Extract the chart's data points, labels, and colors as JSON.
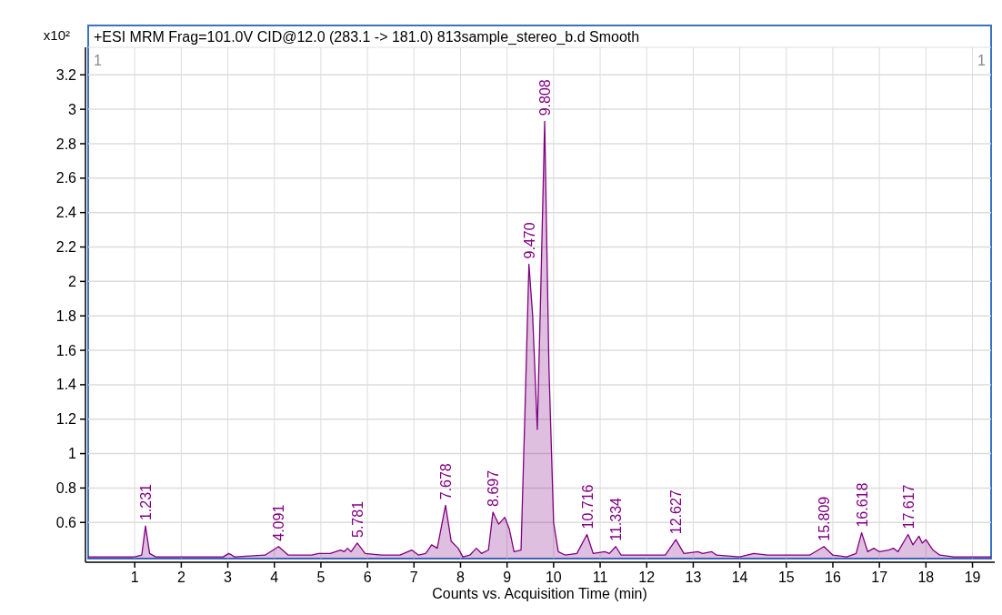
{
  "chart_data": {
    "type": "area",
    "title": "+ESI MRM Frag=101.0V CID@12.0 (283.1 -> 181.0) 813sample_stereo_b.d  Smooth",
    "xlabel": "Counts vs. Acquisition Time (min)",
    "ylabel": "x10²",
    "x": [
      0.0,
      1.0,
      1.15,
      1.231,
      1.32,
      1.45,
      2.0,
      2.9,
      3.02,
      3.15,
      3.8,
      4.091,
      4.3,
      4.8,
      4.95,
      5.2,
      5.42,
      5.5,
      5.57,
      5.65,
      5.781,
      5.95,
      6.3,
      6.7,
      6.95,
      7.1,
      7.25,
      7.38,
      7.5,
      7.678,
      7.8,
      7.95,
      8.05,
      8.2,
      8.34,
      8.45,
      8.6,
      8.697,
      8.82,
      8.95,
      9.05,
      9.15,
      9.3,
      9.38,
      9.47,
      9.55,
      9.65,
      9.72,
      9.808,
      9.9,
      10.0,
      10.1,
      10.25,
      10.5,
      10.716,
      10.85,
      11.1,
      11.2,
      11.334,
      11.45,
      12.0,
      12.4,
      12.627,
      12.8,
      13.1,
      13.2,
      13.4,
      13.5,
      14.0,
      14.3,
      14.6,
      15.5,
      15.809,
      16.0,
      16.3,
      16.5,
      16.618,
      16.75,
      16.88,
      17.0,
      17.2,
      17.3,
      17.4,
      17.617,
      17.72,
      17.85,
      17.92,
      18.0,
      18.15,
      18.3,
      18.6,
      19.0,
      19.4
    ],
    "series": [
      {
        "color": "#800080",
        "values": [
          0.4,
          0.4,
          0.41,
          0.58,
          0.42,
          0.4,
          0.4,
          0.4,
          0.42,
          0.4,
          0.41,
          0.46,
          0.41,
          0.41,
          0.42,
          0.42,
          0.44,
          0.43,
          0.45,
          0.43,
          0.48,
          0.42,
          0.41,
          0.41,
          0.44,
          0.41,
          0.42,
          0.47,
          0.45,
          0.7,
          0.49,
          0.45,
          0.4,
          0.41,
          0.45,
          0.42,
          0.44,
          0.66,
          0.59,
          0.63,
          0.56,
          0.43,
          0.44,
          1.2,
          2.1,
          1.8,
          1.14,
          1.9,
          2.93,
          1.5,
          0.6,
          0.43,
          0.41,
          0.42,
          0.53,
          0.42,
          0.43,
          0.42,
          0.46,
          0.41,
          0.41,
          0.41,
          0.5,
          0.42,
          0.43,
          0.42,
          0.43,
          0.41,
          0.4,
          0.42,
          0.41,
          0.41,
          0.46,
          0.41,
          0.4,
          0.42,
          0.54,
          0.43,
          0.45,
          0.43,
          0.44,
          0.45,
          0.43,
          0.53,
          0.47,
          0.52,
          0.48,
          0.5,
          0.44,
          0.41,
          0.4,
          0.4,
          0.4
        ]
      }
    ],
    "xlim": [
      0,
      19.4
    ],
    "xticks": [
      1,
      2,
      3,
      4,
      5,
      6,
      7,
      8,
      9,
      10,
      11,
      12,
      13,
      14,
      15,
      16,
      17,
      18,
      19
    ],
    "ylim": [
      0.39,
      3.36
    ],
    "yticks": [
      0.6,
      0.8,
      1,
      1.2,
      1.4,
      1.6,
      1.8,
      2,
      2.2,
      2.4,
      2.6,
      2.8,
      3,
      3.2
    ],
    "grid": true,
    "marker": "none",
    "line_style": "solid",
    "annotations": [
      "1",
      "1",
      {
        "text": "1.231",
        "x": 1.231,
        "y": 0.58
      },
      {
        "text": "4.091",
        "x": 4.091,
        "y": 0.46
      },
      {
        "text": "5.781",
        "x": 5.781,
        "y": 0.48
      },
      {
        "text": "7.678",
        "x": 7.678,
        "y": 0.7
      },
      {
        "text": "8.697",
        "x": 8.697,
        "y": 0.66
      },
      {
        "text": "9.470",
        "x": 9.47,
        "y": 2.1
      },
      {
        "text": "9.808",
        "x": 9.808,
        "y": 2.93
      },
      {
        "text": "10.716",
        "x": 10.716,
        "y": 0.53
      },
      {
        "text": "11.334",
        "x": 11.334,
        "y": 0.46
      },
      {
        "text": "12.627",
        "x": 12.627,
        "y": 0.5
      },
      {
        "text": "15.809",
        "x": 15.809,
        "y": 0.46
      },
      {
        "text": "16.618",
        "x": 16.618,
        "y": 0.54
      },
      {
        "text": "17.617",
        "x": 17.617,
        "y": 0.53
      }
    ]
  }
}
